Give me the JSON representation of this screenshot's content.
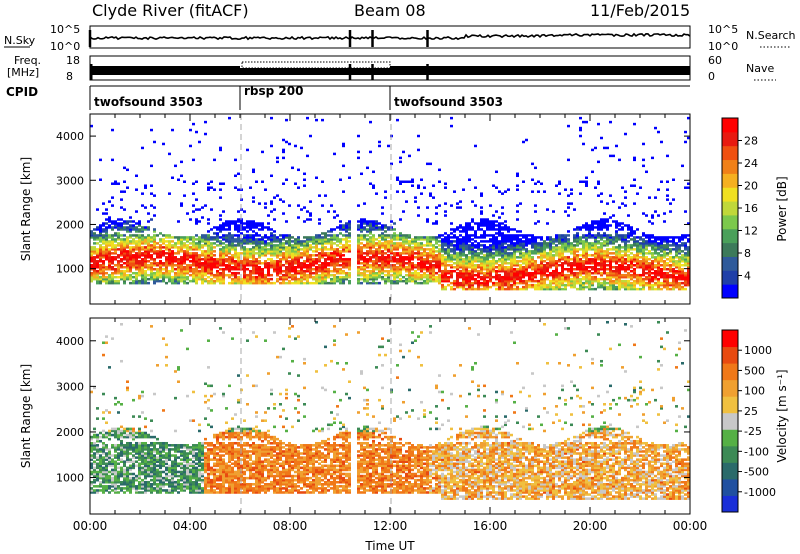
{
  "header": {
    "station": "Clyde River (fitACF)",
    "beam": "Beam 08",
    "date": "11/Feb/2015"
  },
  "strip_panels": {
    "noise": {
      "left_label": "N.Sky",
      "right_label": "N.Search",
      "left_ticks": [
        "10^5",
        "10^0"
      ],
      "right_ticks": [
        "10^5",
        "10^0"
      ]
    },
    "freq": {
      "left_label_line1": "Freq.",
      "left_label_line2": "[MHz]",
      "right_label": "Nave",
      "left_ticks": [
        "18",
        "8"
      ],
      "right_ticks": [
        "60",
        "0"
      ]
    },
    "cpid": {
      "label": "CPID",
      "segments": [
        {
          "name": "twofsound 3503",
          "start_hour": 0,
          "end_hour": 6
        },
        {
          "name": "rbsp 200",
          "start_hour": 6,
          "end_hour": 12
        },
        {
          "name": "twofsound 3503",
          "start_hour": 12,
          "end_hour": 24
        }
      ]
    }
  },
  "chart_data": [
    {
      "type": "heatmap",
      "panel": "power",
      "ylabel": "Slant Range [km]",
      "y_ticks": [
        1000,
        2000,
        3000,
        4000
      ],
      "ylim": [
        200,
        4500
      ],
      "xlim_hours": [
        0,
        24
      ],
      "colorbar": {
        "label": "Power [dB]",
        "tick_labels": [
          "28",
          "24",
          "20",
          "16",
          "12",
          "8",
          "4"
        ],
        "range": [
          0,
          30
        ]
      },
      "main_echo_band_km": [
        500,
        2000
      ],
      "gap_range_km": 1800
    },
    {
      "type": "heatmap",
      "panel": "velocity",
      "ylabel": "Slant Range [km]",
      "y_ticks": [
        1000,
        2000,
        3000,
        4000
      ],
      "ylim": [
        200,
        4500
      ],
      "xlabel": "Time UT",
      "x_ticks": [
        "00:00",
        "04:00",
        "08:00",
        "12:00",
        "16:00",
        "20:00",
        "00:00"
      ],
      "xlim_hours": [
        0,
        24
      ],
      "colorbar": {
        "label": "Velocity [m s⁻¹]",
        "tick_labels": [
          "1000",
          "500",
          "100",
          "25",
          "-25",
          "-100",
          "-500",
          "-1000"
        ]
      },
      "main_echo_band_km": [
        500,
        2000
      ]
    }
  ],
  "colors": {
    "power_scale": [
      "#0000ff",
      "#1f3fa8",
      "#2f5a9a",
      "#3c7a5a",
      "#4aa05a",
      "#7cc84c",
      "#c0d83a",
      "#f0e020",
      "#f5b020",
      "#f08018",
      "#f05010",
      "#e81a10",
      "#ff0000"
    ],
    "velocity_scale": [
      "#1a2fd8",
      "#2050a0",
      "#2a6a6a",
      "#3c8a55",
      "#55b045",
      "#c8c8c8",
      "#f0c040",
      "#f0a030",
      "#f07818",
      "#e84a10",
      "#ff0000"
    ]
  }
}
